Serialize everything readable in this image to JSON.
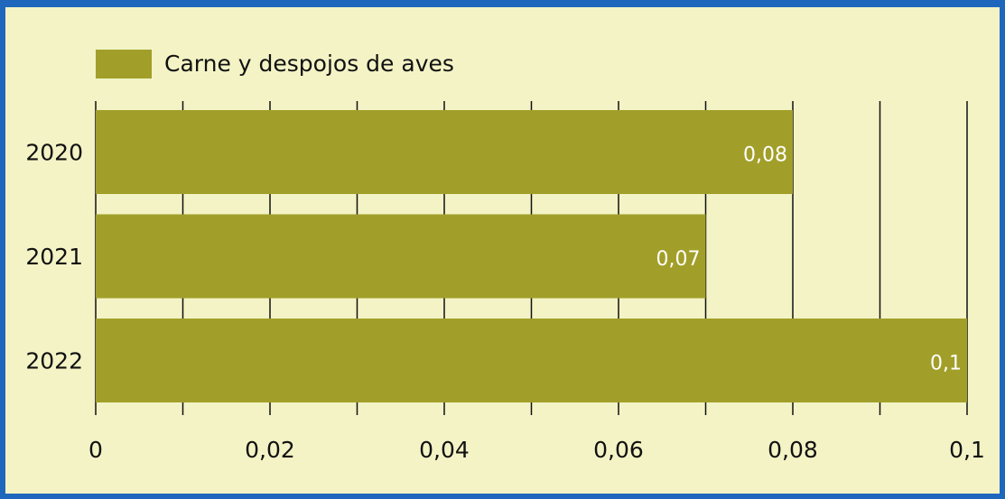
{
  "chart_data": {
    "type": "bar",
    "orientation": "horizontal",
    "categories": [
      "2020",
      "2021",
      "2022"
    ],
    "series": [
      {
        "name": "Carne y despojos de aves",
        "color": "#a19f29",
        "values": [
          0.08,
          0.07,
          0.1
        ],
        "value_labels": [
          "0,08",
          "0,07",
          "0,1"
        ]
      }
    ],
    "xlim": [
      0,
      0.1
    ],
    "xticks": [
      0,
      {
        "value": 0.02,
        "label": "0,02"
      },
      {
        "value": 0.04,
        "label": "0,04"
      },
      {
        "value": 0.06,
        "label": "0,06"
      },
      {
        "value": 0.08,
        "label": "0,08"
      },
      {
        "value": 0.1,
        "label": "0,1"
      }
    ],
    "minor_xticks": [
      0.01,
      0.03,
      0.05,
      0.07,
      0.09
    ],
    "grid": true,
    "legend": "top-left"
  }
}
